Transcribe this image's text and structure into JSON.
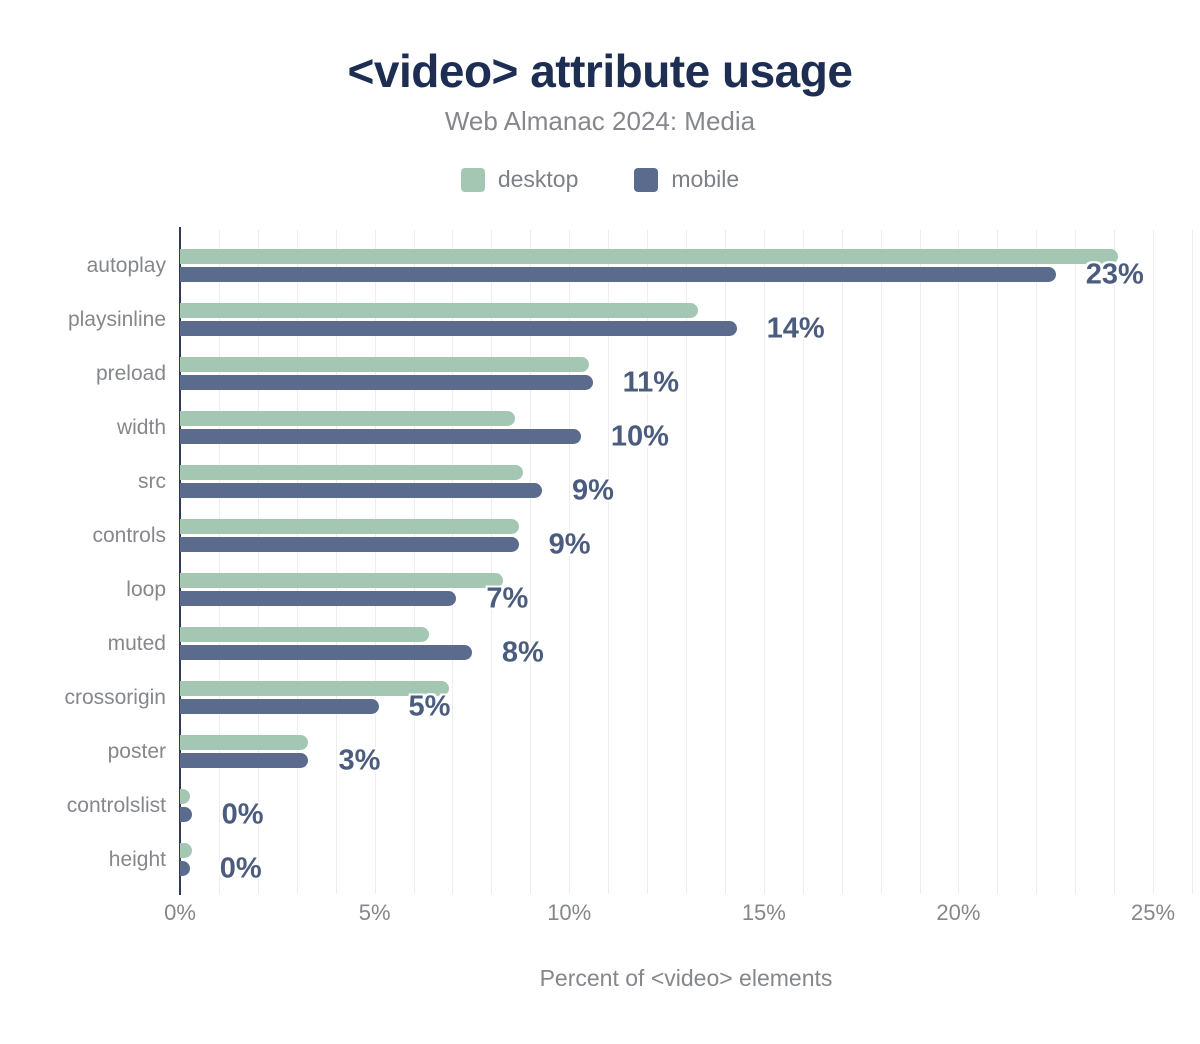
{
  "chart_data": {
    "type": "bar",
    "orientation": "horizontal",
    "title": "<video> attribute usage",
    "subtitle": "Web Almanac 2024: Media",
    "xlabel": "Percent of <video> elements",
    "xlim": [
      0,
      26
    ],
    "grid_interval": 1,
    "grid": "on",
    "legend_position": "top",
    "xtick_values": [
      0,
      5,
      10,
      15,
      20,
      25
    ],
    "xtick_labels": [
      "0%",
      "5%",
      "10%",
      "15%",
      "20%",
      "25%"
    ],
    "categories": [
      "autoplay",
      "playsinline",
      "preload",
      "width",
      "src",
      "controls",
      "loop",
      "muted",
      "crossorigin",
      "poster",
      "controlslist",
      "height"
    ],
    "series": [
      {
        "name": "desktop",
        "color": "#a4c7b3",
        "values": [
          24.1,
          13.3,
          10.5,
          8.6,
          8.8,
          8.7,
          8.3,
          6.4,
          6.9,
          3.3,
          0.25,
          0.3
        ]
      },
      {
        "name": "mobile",
        "color": "#5a6b8e",
        "values": [
          22.5,
          14.3,
          10.6,
          10.3,
          9.3,
          8.7,
          7.1,
          7.5,
          5.1,
          3.3,
          0.3,
          0.25
        ]
      }
    ],
    "value_labels": [
      "23%",
      "14%",
      "11%",
      "10%",
      "9%",
      "9%",
      "7%",
      "8%",
      "5%",
      "3%",
      "0%",
      "0%"
    ],
    "value_labels_follow": "mobile",
    "colors": {
      "title": "#1d2e52",
      "subtitle": "#85878c",
      "axis_text": "#85878c",
      "value_label": "#4c5c7e",
      "axis_line": "#2f3b52",
      "gridline": "#ededed",
      "background": "#ffffff"
    }
  }
}
